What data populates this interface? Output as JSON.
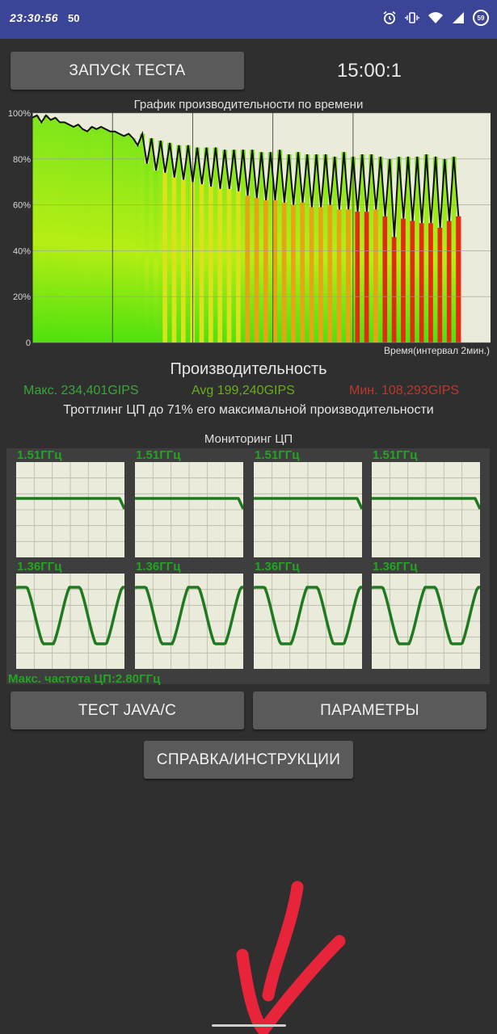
{
  "status_bar": {
    "time": "23:30:56",
    "extra": "50",
    "battery": "59",
    "icons": [
      "alarm-icon",
      "vibrate-icon",
      "wifi-icon",
      "signal-icon",
      "battery-icon"
    ]
  },
  "toolbar": {
    "start_test_label": "ЗАПУСК ТЕСТА",
    "timer": "15:00:1"
  },
  "performance_chart": {
    "title": "График производительности по времени",
    "x_caption": "Время(интервал 2мин.)",
    "y_ticks": [
      "100%",
      "80%",
      "60%",
      "40%",
      "20%",
      "0"
    ]
  },
  "chart_data": {
    "type": "line",
    "title": "График производительности по времени",
    "xlabel": "Время(интервал 2мин.)",
    "ylabel": "",
    "ylim": [
      0,
      100
    ],
    "y_ticks": [
      0,
      20,
      40,
      60,
      80,
      100
    ],
    "series": [
      {
        "values": [
          98,
          99,
          96,
          99,
          97,
          98,
          96,
          96,
          95,
          94,
          95,
          93,
          92,
          94,
          93,
          94,
          93,
          92,
          92,
          91,
          90,
          91,
          89,
          86,
          91,
          78,
          89,
          75,
          88,
          74,
          87,
          72,
          86,
          71,
          86,
          70,
          85,
          69,
          85,
          68,
          85,
          67,
          84,
          67,
          84,
          66,
          84,
          64,
          84,
          63,
          83,
          62,
          83,
          62,
          84,
          61,
          82,
          60,
          83,
          61,
          82,
          59,
          82,
          59,
          82,
          60,
          81,
          58,
          83,
          58,
          81,
          57,
          82,
          57,
          82,
          58,
          81,
          55,
          80,
          46,
          81,
          54,
          81,
          53,
          81,
          52,
          82,
          52,
          81,
          50,
          80,
          53,
          81,
          55
        ]
      }
    ]
  },
  "performance": {
    "heading": "Производительность",
    "max": "Макс. 234,401GIPS",
    "avg": "Avg 199,240GIPS",
    "min": "Мин. 108,293GIPS",
    "throttle": "Троттлинг ЦП до 71% его максимальной производительности"
  },
  "cpu_monitor": {
    "title": "Мониторинг ЦП",
    "cores": [
      {
        "freq": "1.51ГГц"
      },
      {
        "freq": "1.51ГГц"
      },
      {
        "freq": "1.51ГГц"
      },
      {
        "freq": "1.51ГГц"
      },
      {
        "freq": "1.36ГГц"
      },
      {
        "freq": "1.36ГГц"
      },
      {
        "freq": "1.36ГГц"
      },
      {
        "freq": "1.36ГГц"
      }
    ],
    "max_freq": "Макс. частота ЦП:2.80ГГц"
  },
  "buttons": {
    "java_c": "ТЕСТ JAVA/C",
    "params": "ПАРАМЕТРЫ",
    "help": "СПРАВКА/ИНСТРУКЦИИ"
  },
  "colors": {
    "status_bar": "#3a4597",
    "background": "#2f2f2f",
    "chart_bg": "#ebebdc",
    "high_perf": "#55ee11",
    "low_perf": "#e32b12",
    "core_line": "#1f7a1f"
  }
}
